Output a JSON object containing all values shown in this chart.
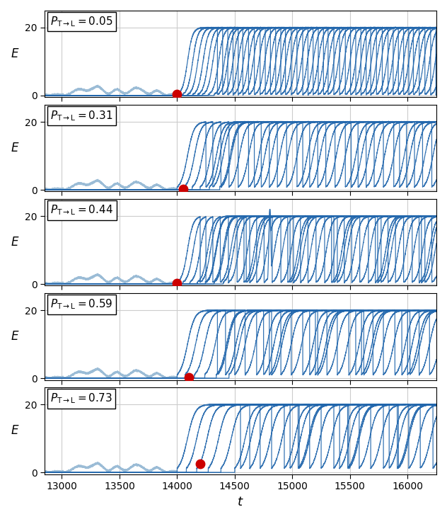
{
  "panels": [
    {
      "p_val": 0.05,
      "n_trajectories": 8,
      "drop_period": 380,
      "first_drop": 14350,
      "red_t": 14000,
      "red_e": 0.3
    },
    {
      "p_val": 0.31,
      "n_trajectories": 6,
      "drop_period": 480,
      "first_drop": 14250,
      "red_t": 14050,
      "red_e": 0.3
    },
    {
      "p_val": 0.44,
      "n_trajectories": 7,
      "drop_period": 420,
      "first_drop": 14200,
      "red_t": 14000,
      "red_e": 0.3
    },
    {
      "p_val": 0.59,
      "n_trajectories": 6,
      "drop_period": 430,
      "first_drop": 14350,
      "red_t": 14100,
      "red_e": 0.3
    },
    {
      "p_val": 0.73,
      "n_trajectories": 6,
      "drop_period": 430,
      "first_drop": 14550,
      "red_t": 14200,
      "red_e": 2.5
    }
  ],
  "xlim": [
    12850,
    16250
  ],
  "ylim": [
    -0.5,
    25
  ],
  "yticks": [
    0,
    20
  ],
  "xticks": [
    13000,
    13500,
    14000,
    14500,
    15000,
    15500,
    16000
  ],
  "light_blue": "#9bbcd6",
  "dark_blue": "#2166ac",
  "red_color": "#cc0000",
  "bg_color": "#ffffff",
  "grid_color": "#cccccc",
  "transition_t": 14000,
  "t_start": 12850,
  "t_end": 16250,
  "xlabel": "$t$",
  "ylabel": "$E$",
  "max_E": 20.0
}
